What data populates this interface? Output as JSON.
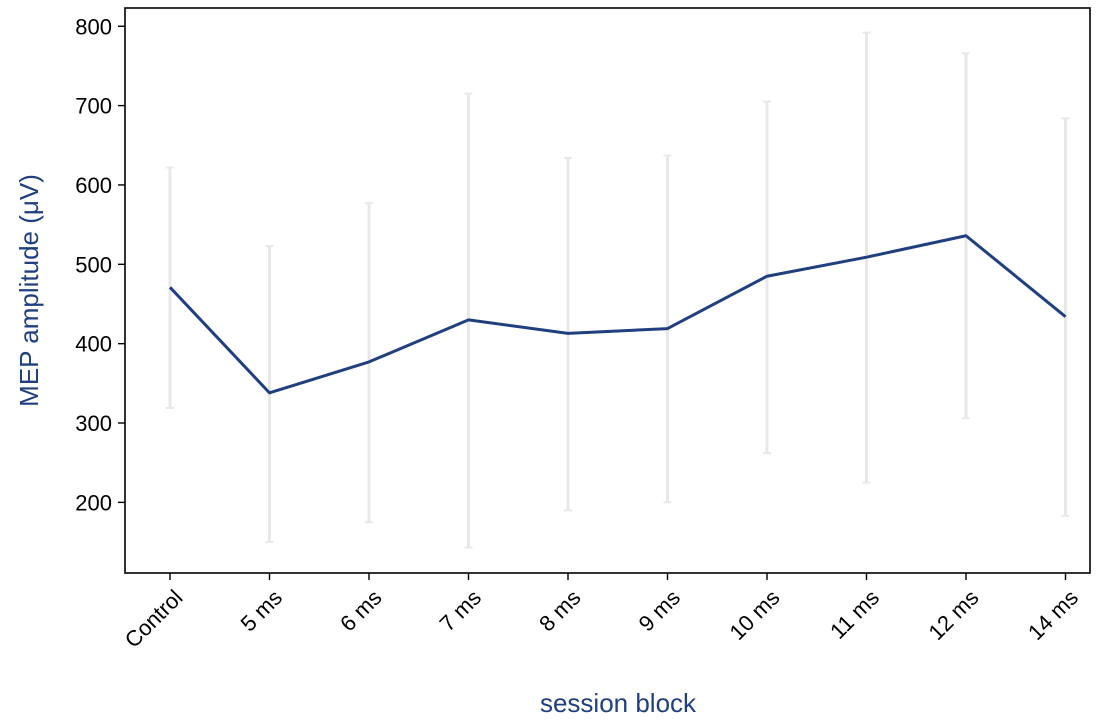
{
  "chart_data": {
    "type": "line",
    "title": "",
    "xlabel": "session block",
    "ylabel": "MEP amplitude (μV)",
    "categories": [
      "Control",
      "5 ms",
      "6 ms",
      "7 ms",
      "8 ms",
      "9 ms",
      "10 ms",
      "11 ms",
      "12 ms",
      "14 ms"
    ],
    "series": [
      {
        "values": [
          471,
          338,
          377,
          430,
          413,
          419,
          485,
          509,
          536,
          434
        ],
        "error_low": [
          319,
          150,
          175,
          143,
          190,
          200,
          262,
          225,
          306,
          183
        ],
        "error_high": [
          622,
          523,
          577,
          715,
          634,
          637,
          705,
          792,
          766,
          684
        ]
      }
    ],
    "yticks": [
      200,
      300,
      400,
      500,
      600,
      700,
      800
    ],
    "ylim": [
      111,
      823
    ],
    "grid": false,
    "legend": "none",
    "colors": {
      "line": "#1f3f7f",
      "error_bar": "#e8e8e8",
      "axis_label": "#1f3f7f",
      "axis": "#000000"
    }
  }
}
